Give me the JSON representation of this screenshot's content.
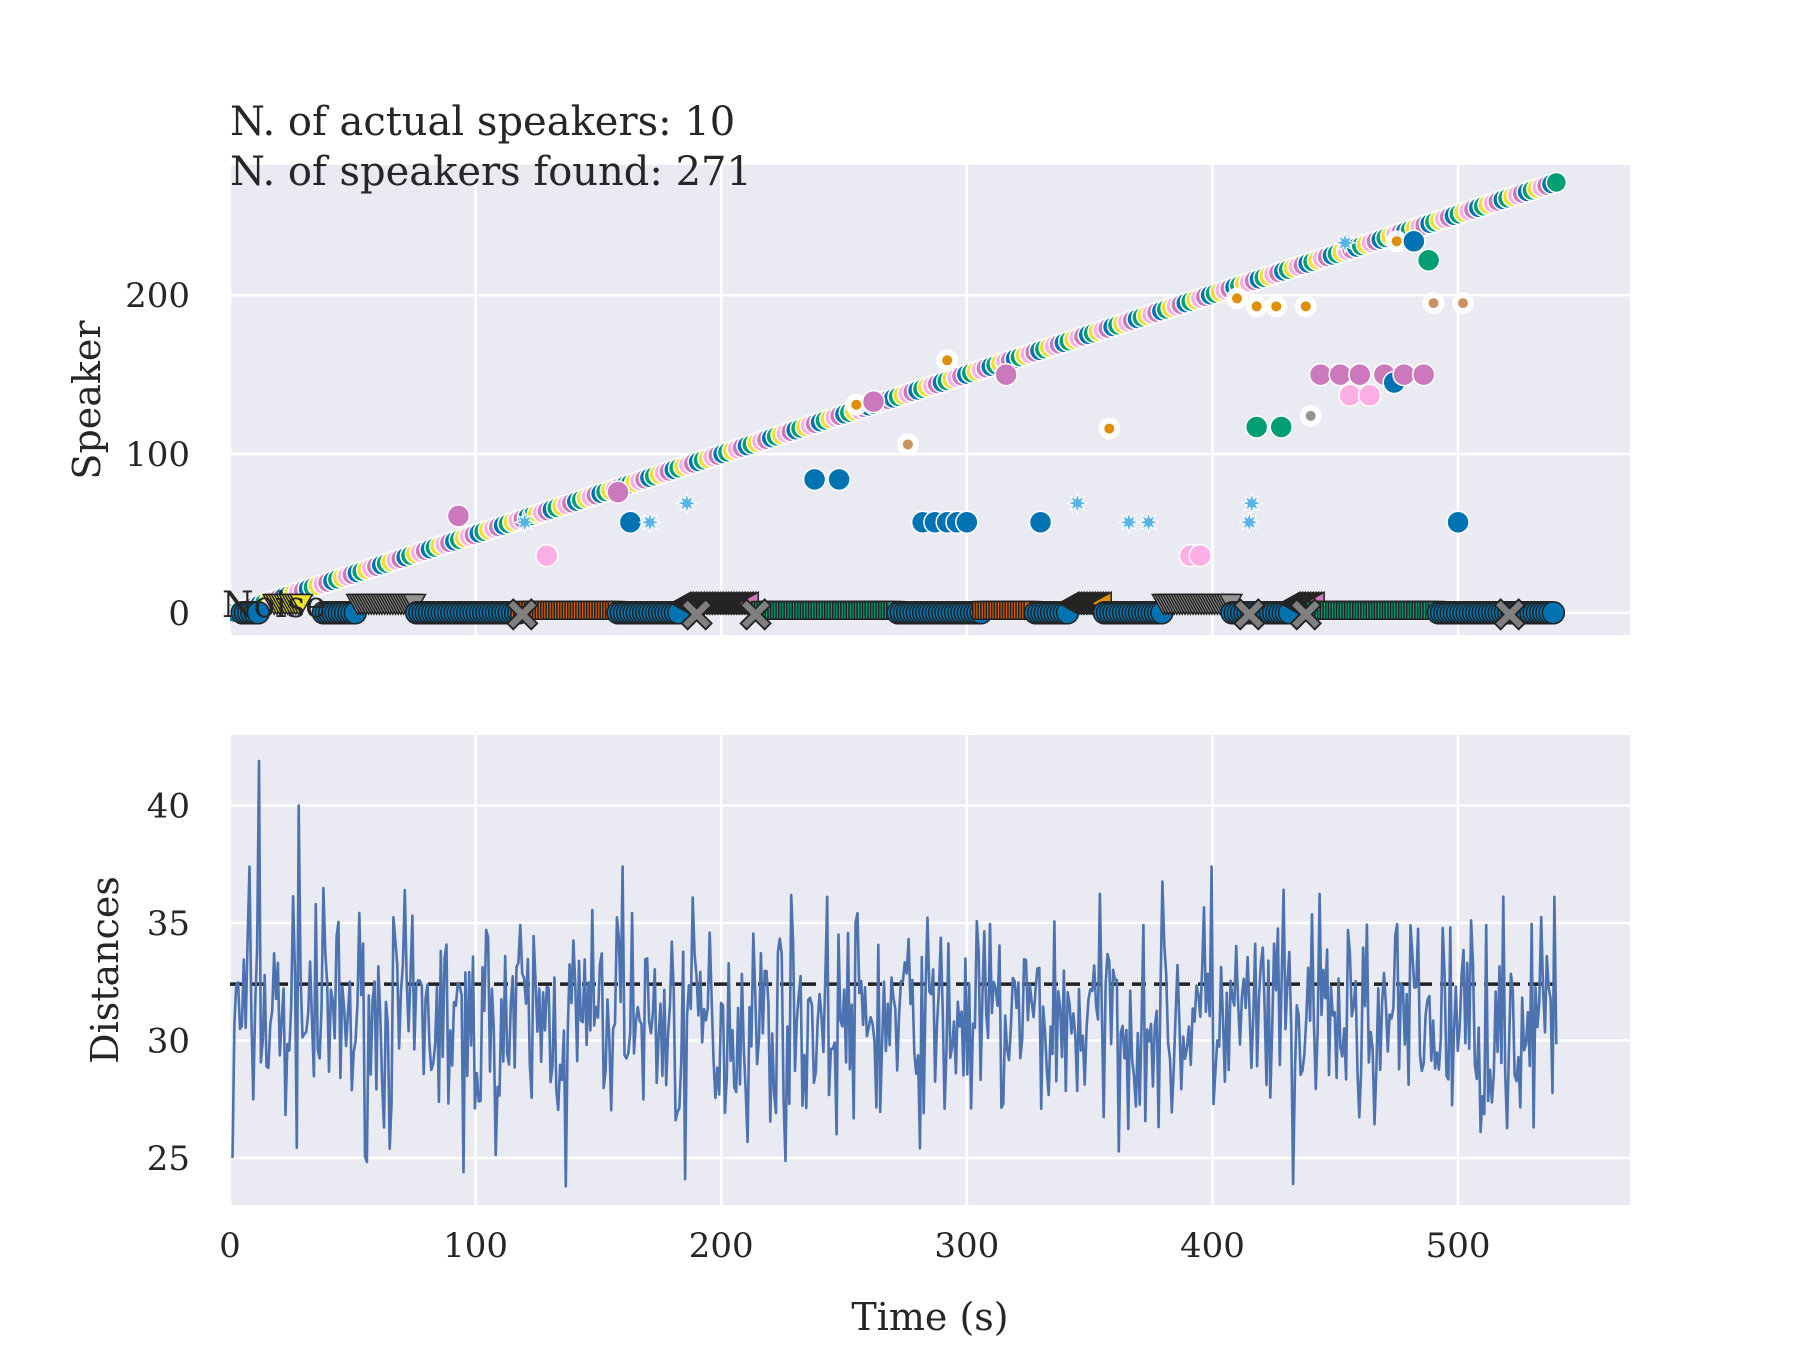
{
  "chart_data": [
    {
      "type": "scatter",
      "annotations": [
        "N. of actual speakers: 10",
        "N. of speakers found: 271"
      ],
      "ylabel": "Speaker",
      "xlim": [
        0,
        570
      ],
      "ylim": [
        -14,
        282
      ],
      "yticks": [
        0,
        100,
        200
      ],
      "grid": true,
      "background": "#eaeaf2",
      "palette": [
        "#0173b2",
        "#de8f05",
        "#029e73",
        "#d55e00",
        "#cc78bc",
        "#ca9161",
        "#fbafe4",
        "#949494",
        "#ece133",
        "#56b4e9"
      ],
      "diagonal_trace": {
        "x_start": 2,
        "x_end": 540,
        "speaker_start": 0,
        "speaker_end": 271,
        "colors_cycle": [
          "#0173b2",
          "#029e73",
          "#ece133",
          "#fbafe4",
          "#cc78bc"
        ]
      },
      "actual_speaker_segments": [
        {
          "x0": 5,
          "x1": 12,
          "marker": "o",
          "color": "#0173b2"
        },
        {
          "x0": 18,
          "x1": 30,
          "marker": "v",
          "color": "#ece133"
        },
        {
          "x0": 38,
          "x1": 52,
          "marker": "o",
          "color": "#0173b2"
        },
        {
          "x0": 52,
          "x1": 76,
          "marker": "v",
          "color": "#949494"
        },
        {
          "x0": 76,
          "x1": 118,
          "marker": "o",
          "color": "#0173b2"
        },
        {
          "x0": 118,
          "x1": 158,
          "marker": "s",
          "color": "#d55e00"
        },
        {
          "x0": 158,
          "x1": 184,
          "marker": "o",
          "color": "#0173b2"
        },
        {
          "x0": 184,
          "x1": 212,
          "marker": "<",
          "color": "#cc78bc"
        },
        {
          "x0": 216,
          "x1": 272,
          "marker": "s",
          "color": "#029e73"
        },
        {
          "x0": 272,
          "x1": 306,
          "marker": "o",
          "color": "#0173b2"
        },
        {
          "x0": 306,
          "x1": 328,
          "marker": "s",
          "color": "#d55e00"
        },
        {
          "x0": 328,
          "x1": 342,
          "marker": "o",
          "color": "#0173b2"
        },
        {
          "x0": 342,
          "x1": 356,
          "marker": "<",
          "color": "#de8f05"
        },
        {
          "x0": 356,
          "x1": 380,
          "marker": "o",
          "color": "#0173b2"
        },
        {
          "x0": 380,
          "x1": 408,
          "marker": "v",
          "color": "#949494"
        },
        {
          "x0": 408,
          "x1": 432,
          "marker": "o",
          "color": "#0173b2"
        },
        {
          "x0": 432,
          "x1": 442,
          "marker": "<",
          "color": "#cc78bc"
        },
        {
          "x0": 442,
          "x1": 492,
          "marker": "s",
          "color": "#029e73"
        },
        {
          "x0": 492,
          "x1": 540,
          "marker": "o",
          "color": "#0173b2"
        }
      ],
      "noise_markers_x": [
        119,
        190,
        214,
        415,
        438,
        521
      ],
      "scattered_points": [
        {
          "x": 93,
          "y": 61,
          "color": "#cc78bc",
          "size": "large"
        },
        {
          "x": 120,
          "y": 57,
          "color": "#56b4e9",
          "size": "star"
        },
        {
          "x": 129,
          "y": 36,
          "color": "#fbafe4",
          "size": "large"
        },
        {
          "x": 158,
          "y": 76,
          "color": "#cc78bc",
          "size": "large"
        },
        {
          "x": 163,
          "y": 57,
          "color": "#0173b2",
          "size": "large"
        },
        {
          "x": 171,
          "y": 57,
          "color": "#56b4e9",
          "size": "star"
        },
        {
          "x": 186,
          "y": 69,
          "color": "#56b4e9",
          "size": "star"
        },
        {
          "x": 238,
          "y": 84,
          "color": "#0173b2",
          "size": "large"
        },
        {
          "x": 248,
          "y": 84,
          "color": "#0173b2",
          "size": "large"
        },
        {
          "x": 255,
          "y": 131,
          "color": "#de8f05",
          "size": "small"
        },
        {
          "x": 262,
          "y": 133,
          "color": "#cc78bc",
          "size": "large"
        },
        {
          "x": 276,
          "y": 106,
          "color": "#ca9161",
          "size": "small"
        },
        {
          "x": 282,
          "y": 57,
          "color": "#0173b2",
          "size": "large"
        },
        {
          "x": 287,
          "y": 57,
          "color": "#0173b2",
          "size": "large"
        },
        {
          "x": 292,
          "y": 57,
          "color": "#0173b2",
          "size": "large"
        },
        {
          "x": 296,
          "y": 57,
          "color": "#0173b2",
          "size": "large"
        },
        {
          "x": 300,
          "y": 57,
          "color": "#0173b2",
          "size": "large"
        },
        {
          "x": 292,
          "y": 159,
          "color": "#de8f05",
          "size": "small"
        },
        {
          "x": 316,
          "y": 150,
          "color": "#cc78bc",
          "size": "large"
        },
        {
          "x": 330,
          "y": 57,
          "color": "#0173b2",
          "size": "large"
        },
        {
          "x": 345,
          "y": 69,
          "color": "#56b4e9",
          "size": "star"
        },
        {
          "x": 358,
          "y": 116,
          "color": "#de8f05",
          "size": "small"
        },
        {
          "x": 366,
          "y": 57,
          "color": "#56b4e9",
          "size": "star"
        },
        {
          "x": 374,
          "y": 57,
          "color": "#56b4e9",
          "size": "star"
        },
        {
          "x": 391,
          "y": 36,
          "color": "#fbafe4",
          "size": "large"
        },
        {
          "x": 395,
          "y": 36,
          "color": "#fbafe4",
          "size": "large"
        },
        {
          "x": 410,
          "y": 198,
          "color": "#de8f05",
          "size": "small"
        },
        {
          "x": 415,
          "y": 57,
          "color": "#56b4e9",
          "size": "star"
        },
        {
          "x": 416,
          "y": 69,
          "color": "#56b4e9",
          "size": "star"
        },
        {
          "x": 418,
          "y": 117,
          "color": "#029e73",
          "size": "large"
        },
        {
          "x": 428,
          "y": 117,
          "color": "#029e73",
          "size": "large"
        },
        {
          "x": 418,
          "y": 193,
          "color": "#de8f05",
          "size": "small"
        },
        {
          "x": 426,
          "y": 193,
          "color": "#de8f05",
          "size": "small"
        },
        {
          "x": 438,
          "y": 193,
          "color": "#de8f05",
          "size": "small"
        },
        {
          "x": 440,
          "y": 124,
          "color": "#949494",
          "size": "small"
        },
        {
          "x": 444,
          "y": 150,
          "color": "#cc78bc",
          "size": "large"
        },
        {
          "x": 452,
          "y": 150,
          "color": "#cc78bc",
          "size": "large"
        },
        {
          "x": 456,
          "y": 137,
          "color": "#fbafe4",
          "size": "large"
        },
        {
          "x": 460,
          "y": 150,
          "color": "#cc78bc",
          "size": "large"
        },
        {
          "x": 464,
          "y": 137,
          "color": "#fbafe4",
          "size": "large"
        },
        {
          "x": 470,
          "y": 150,
          "color": "#cc78bc",
          "size": "large"
        },
        {
          "x": 474,
          "y": 145,
          "color": "#0173b2",
          "size": "large"
        },
        {
          "x": 478,
          "y": 150,
          "color": "#cc78bc",
          "size": "large"
        },
        {
          "x": 486,
          "y": 150,
          "color": "#cc78bc",
          "size": "large"
        },
        {
          "x": 454,
          "y": 233,
          "color": "#56b4e9",
          "size": "star"
        },
        {
          "x": 475,
          "y": 234,
          "color": "#de8f05",
          "size": "small"
        },
        {
          "x": 482,
          "y": 234,
          "color": "#0173b2",
          "size": "large"
        },
        {
          "x": 488,
          "y": 222,
          "color": "#029e73",
          "size": "large"
        },
        {
          "x": 490,
          "y": 195,
          "color": "#ca9161",
          "size": "small"
        },
        {
          "x": 500,
          "y": 57,
          "color": "#0173b2",
          "size": "large"
        },
        {
          "x": 502,
          "y": 195,
          "color": "#ca9161",
          "size": "small"
        }
      ]
    },
    {
      "type": "line",
      "xlabel": "Time (s)",
      "ylabel": "Distances",
      "xlim": [
        0,
        570
      ],
      "ylim": [
        23,
        43
      ],
      "xticks": [
        0,
        100,
        200,
        300,
        400,
        500
      ],
      "yticks": [
        25,
        30,
        35,
        40
      ],
      "grid": true,
      "background": "#eaeaf2",
      "line_color": "#4c72b0",
      "threshold": {
        "y": 32.4,
        "x0": 0,
        "x1": 540,
        "style": "dashed",
        "color": "#222222"
      },
      "series_spec": {
        "x_start": 1,
        "x_end": 540,
        "n_points": 700,
        "mean": 30.8,
        "min": 23.8,
        "max": 41.9
      }
    }
  ]
}
